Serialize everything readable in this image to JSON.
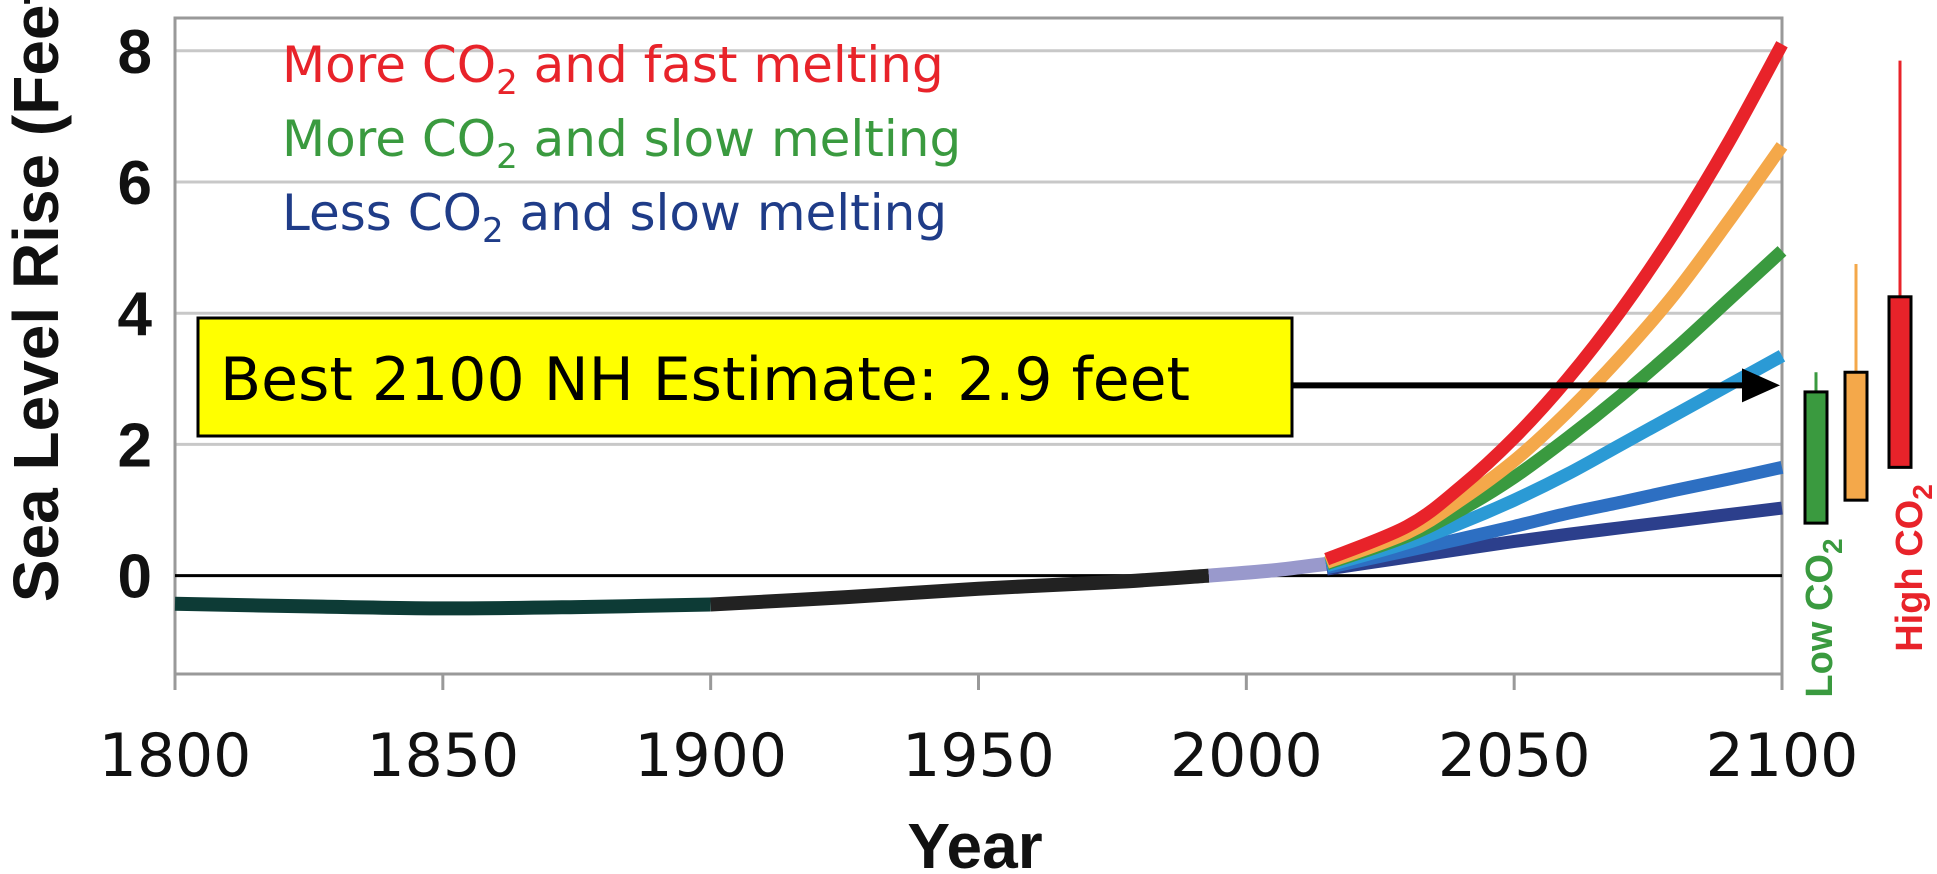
{
  "chart_data": {
    "type": "line",
    "xlabel": "Year",
    "ylabel": "Sea Level Rise (Feet)",
    "xlim": [
      1800,
      2100
    ],
    "ylim": [
      -1.5,
      8.5
    ],
    "xticks": [
      "1800",
      "1850",
      "1900",
      "1950",
      "2000",
      "2050",
      "2100"
    ],
    "yticks": [
      "0",
      "2",
      "4",
      "6",
      "8"
    ],
    "grid": "horizontal",
    "legend_position": "top-left",
    "legend": [
      {
        "label": "More CO2 and fast melting",
        "color": "#e8232a"
      },
      {
        "label": "More CO2 and slow melting",
        "color": "#3a9a3f"
      },
      {
        "label": "Less CO2 and slow melting",
        "color": "#1f3c88"
      }
    ],
    "observed": [
      {
        "color": "#0d3b36",
        "x": [
          1800,
          1825,
          1850,
          1875,
          1900
        ],
        "y": [
          -0.43,
          -0.47,
          -0.5,
          -0.48,
          -0.44
        ]
      },
      {
        "color": "#222222",
        "x": [
          1900,
          1925,
          1950,
          1975,
          1993
        ],
        "y": [
          -0.44,
          -0.33,
          -0.2,
          -0.1,
          0.0
        ]
      },
      {
        "color": "#9999cc",
        "x": [
          1993,
          2005,
          2015
        ],
        "y": [
          0.0,
          0.08,
          0.18
        ]
      }
    ],
    "series": [
      {
        "color": "#e8232a",
        "x": [
          2015,
          2030,
          2040,
          2050,
          2060,
          2070,
          2080,
          2090,
          2100
        ],
        "y": [
          0.25,
          0.75,
          1.35,
          2.1,
          3.0,
          4.05,
          5.25,
          6.6,
          8.1
        ]
      },
      {
        "color": "#f4a84a",
        "x": [
          2015,
          2030,
          2040,
          2050,
          2060,
          2070,
          2080,
          2090,
          2100
        ],
        "y": [
          0.2,
          0.65,
          1.15,
          1.75,
          2.5,
          3.35,
          4.3,
          5.4,
          6.55
        ]
      },
      {
        "color": "#3a9a3f",
        "x": [
          2015,
          2030,
          2040,
          2050,
          2060,
          2070,
          2080,
          2090,
          2100
        ],
        "y": [
          0.18,
          0.6,
          1.0,
          1.5,
          2.1,
          2.75,
          3.45,
          4.2,
          4.95
        ]
      },
      {
        "color": "#2b9ad5",
        "x": [
          2015,
          2030,
          2040,
          2050,
          2060,
          2070,
          2080,
          2090,
          2100
        ],
        "y": [
          0.15,
          0.5,
          0.8,
          1.15,
          1.55,
          2.0,
          2.45,
          2.9,
          3.35
        ]
      },
      {
        "color": "#2d6fc2",
        "x": [
          2015,
          2030,
          2040,
          2050,
          2060,
          2070,
          2080,
          2090,
          2100
        ],
        "y": [
          0.12,
          0.38,
          0.56,
          0.75,
          0.95,
          1.12,
          1.3,
          1.47,
          1.65
        ]
      },
      {
        "color": "#2c3f8c",
        "x": [
          2015,
          2030,
          2040,
          2050,
          2060,
          2070,
          2080,
          2090,
          2100
        ],
        "y": [
          0.1,
          0.28,
          0.4,
          0.52,
          0.63,
          0.73,
          0.83,
          0.93,
          1.03
        ]
      }
    ],
    "annotation": {
      "text": "Best 2100 NH Estimate: 2.9 feet",
      "value": 2.9
    },
    "ranges_2100": [
      {
        "label": "Low CO2",
        "color": "#3a9a3f",
        "box_low": 0.8,
        "box_high": 2.8,
        "whisker_high": 3.1
      },
      {
        "color": "#f4a84a",
        "box_low": 1.15,
        "box_high": 3.1,
        "whisker_high": 4.75
      },
      {
        "label": "High CO2",
        "color": "#e8232a",
        "box_low": 1.65,
        "box_high": 4.25,
        "whisker_high": 7.85
      }
    ]
  }
}
